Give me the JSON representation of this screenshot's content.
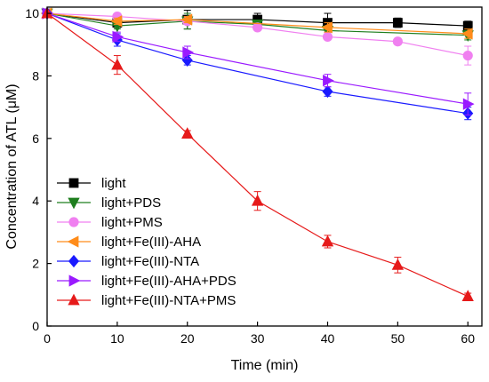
{
  "chart_data": {
    "type": "line",
    "title": "",
    "xlabel": "Time (min)",
    "ylabel": "Concentration of ATL (μM)",
    "xlim": [
      0,
      62
    ],
    "ylim": [
      0,
      10.2
    ],
    "xticks": [
      0,
      10,
      20,
      30,
      40,
      50,
      60
    ],
    "yticks": [
      0,
      2,
      4,
      6,
      8,
      10
    ],
    "grid": false,
    "legend": "bottom-left",
    "series": [
      {
        "name": "light",
        "color": "#000000",
        "marker": "square",
        "x": [
          0,
          10,
          20,
          30,
          40,
          50,
          60
        ],
        "y": [
          10.0,
          9.7,
          9.8,
          9.8,
          9.7,
          9.7,
          9.6
        ],
        "err": [
          0.05,
          0.15,
          0.3,
          0.2,
          0.3,
          0.15,
          0.15
        ]
      },
      {
        "name": "light+PDS",
        "color": "#1f7f1f",
        "marker": "triangle-down",
        "x": [
          0,
          10,
          20,
          30,
          40,
          60
        ],
        "y": [
          10.0,
          9.6,
          9.75,
          9.65,
          9.45,
          9.3
        ],
        "err": [
          0.05,
          0.1,
          0.25,
          0.1,
          0.15,
          0.15
        ]
      },
      {
        "name": "light+PMS",
        "color": "#f080f0",
        "marker": "circle",
        "x": [
          0,
          10,
          20,
          30,
          40,
          50,
          60
        ],
        "y": [
          10.0,
          9.9,
          9.75,
          9.55,
          9.25,
          9.1,
          8.65
        ],
        "err": [
          0.05,
          0.1,
          0.1,
          0.1,
          0.1,
          0.1,
          0.3
        ]
      },
      {
        "name": "light+Fe(III)-AHA",
        "color": "#ff8c1a",
        "marker": "triangle-left",
        "x": [
          0,
          10,
          20,
          40,
          60
        ],
        "y": [
          10.0,
          9.75,
          9.8,
          9.55,
          9.35
        ],
        "err": [
          0.05,
          0.1,
          0.1,
          0.15,
          0.15
        ]
      },
      {
        "name": "light+Fe(III)-NTA",
        "color": "#1a1aff",
        "marker": "diamond",
        "x": [
          0,
          10,
          20,
          40,
          60
        ],
        "y": [
          10.0,
          9.15,
          8.5,
          7.5,
          6.8
        ],
        "err": [
          0.05,
          0.2,
          0.15,
          0.15,
          0.2
        ]
      },
      {
        "name": "light+Fe(III)-AHA+PDS",
        "color": "#9a1aff",
        "marker": "triangle-right",
        "x": [
          0,
          10,
          20,
          40,
          60
        ],
        "y": [
          10.0,
          9.25,
          8.75,
          7.85,
          7.1
        ],
        "err": [
          0.05,
          0.15,
          0.2,
          0.2,
          0.35
        ]
      },
      {
        "name": "light+Fe(III)-NTA+PMS",
        "color": "#e61a1a",
        "marker": "triangle-up",
        "x": [
          0,
          10,
          20,
          30,
          40,
          50,
          60
        ],
        "y": [
          10.0,
          8.35,
          6.15,
          4.0,
          2.7,
          1.95,
          0.95
        ],
        "err": [
          0.05,
          0.3,
          0.1,
          0.3,
          0.2,
          0.25,
          0.1
        ]
      }
    ]
  }
}
